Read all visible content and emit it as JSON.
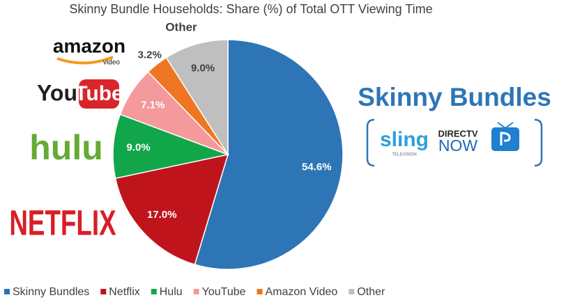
{
  "chart_data": {
    "type": "pie",
    "title": "Skinny Bundle Households: Share (%) of Total OTT Viewing Time",
    "categories": [
      "Skinny Bundles",
      "Netflix",
      "Hulu",
      "YouTube",
      "Amazon Video",
      "Other"
    ],
    "values": [
      54.6,
      17.0,
      9.0,
      7.1,
      3.2,
      9.0
    ],
    "value_labels": [
      "54.6%",
      "17.0%",
      "9.0%",
      "7.1%",
      "3.2%",
      "9.0%"
    ],
    "colors": [
      "#2e75b6",
      "#c0141c",
      "#12a64a",
      "#f4999c",
      "#ee7623",
      "#bfbfbf"
    ],
    "legend": "bottom",
    "logos": {
      "amazon": "amazon",
      "amazon_sub": "video",
      "youtube_you": "You",
      "youtube_tube": "Tube",
      "hulu": "hulu",
      "netflix": "NETFLIX",
      "bundles_title": "Skinny Bundles",
      "sling": "sling",
      "sling_sub": "TELEVISION",
      "directv": "DIRECTV",
      "now": "NOW"
    }
  }
}
